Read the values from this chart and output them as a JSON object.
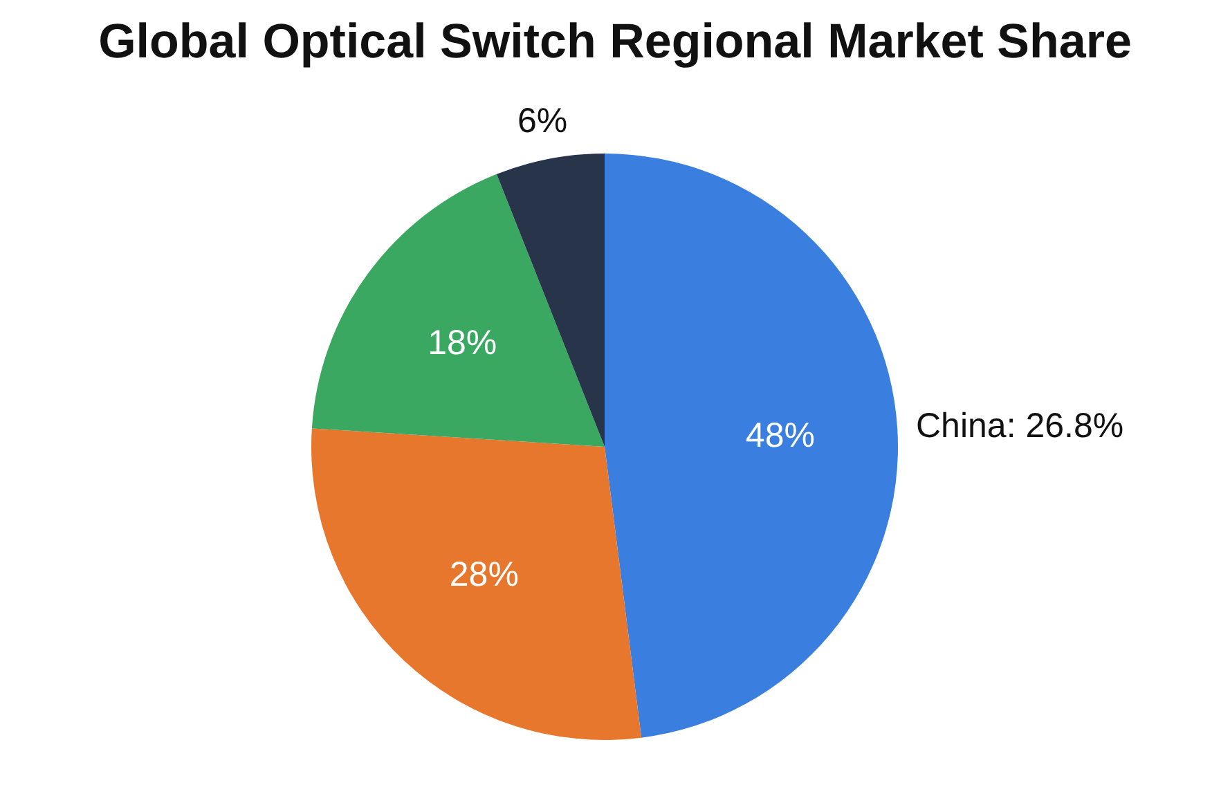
{
  "chart_data": {
    "type": "pie",
    "title": "Global Optical Switch Regional Market Share",
    "categories": [
      null,
      null,
      null,
      null
    ],
    "values": [
      48,
      28,
      18,
      6
    ],
    "colors": [
      "#3a7fe0",
      "#e8772e",
      "#3aa860",
      "#27344a"
    ],
    "value_labels": [
      "48%",
      "28%",
      "18%",
      "6%"
    ],
    "annotations": [
      "China: 26.8%"
    ]
  }
}
